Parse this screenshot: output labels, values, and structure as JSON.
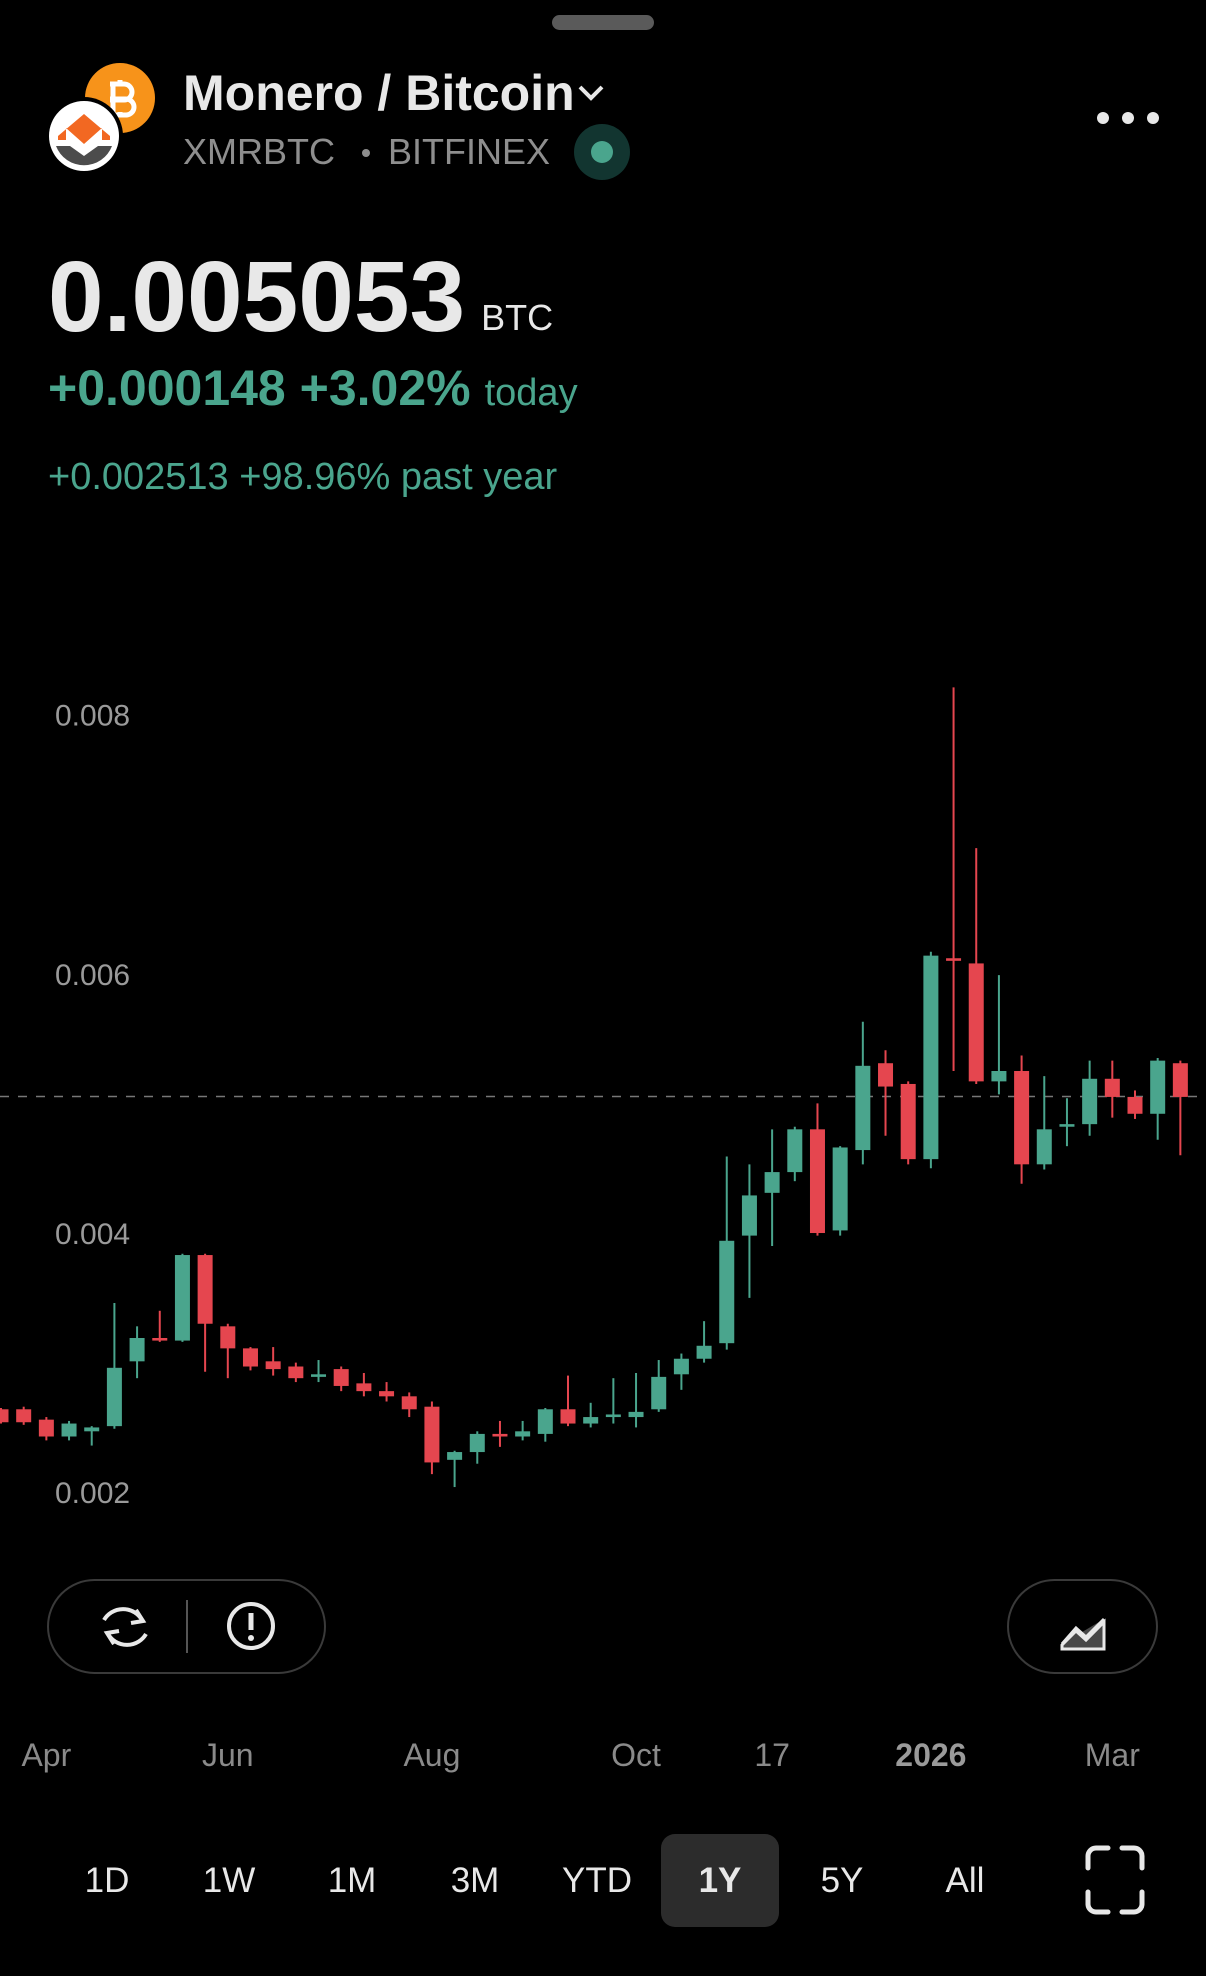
{
  "header": {
    "title": "Monero / Bitcoin",
    "symbol": "XMRBTC",
    "exchange": "BITFINEX",
    "price": 0.005053,
    "unit": "BTC",
    "change_today": "+0.000148 +3.02%",
    "today_label": "today",
    "change_year": "+0.002513 +98.96% past year"
  },
  "ranges": [
    "1D",
    "1W",
    "1M",
    "3M",
    "YTD",
    "1Y",
    "5Y",
    "All"
  ],
  "selected_range": "1Y",
  "chart_data": {
    "type": "candlestick",
    "up_color": "#4aa58d",
    "down_color": "#e5464f",
    "categories": [
      null,
      null,
      "Apr",
      null,
      null,
      null,
      null,
      null,
      null,
      null,
      "Jun",
      null,
      null,
      null,
      null,
      null,
      null,
      null,
      null,
      "Aug",
      null,
      null,
      null,
      null,
      null,
      null,
      null,
      null,
      "Oct",
      null,
      null,
      null,
      null,
      null,
      "17",
      null,
      null,
      null,
      null,
      null,
      null,
      "2026",
      null,
      null,
      null,
      null,
      null,
      null,
      null,
      "Mar",
      null,
      null,
      null
    ],
    "open": [
      0.00264,
      0.00264,
      0.00256,
      0.00243,
      0.00247,
      0.00251,
      0.00301,
      0.00319,
      0.00317,
      0.00383,
      0.00328,
      0.00311,
      0.00301,
      0.00297,
      0.00289,
      0.00295,
      0.00284,
      0.00278,
      0.00274,
      0.00266,
      0.00225,
      0.00231,
      0.00245,
      0.00243,
      0.00245,
      0.00264,
      0.00253,
      0.00258,
      0.00258,
      0.00264,
      0.00291,
      0.00303,
      0.00315,
      0.00398,
      0.00431,
      0.00447,
      0.0048,
      0.00402,
      0.00464,
      0.00531,
      0.00515,
      0.00457,
      0.00612,
      0.00608,
      0.00517,
      0.00525,
      0.00453,
      0.00482,
      0.00484,
      0.00519,
      0.00505,
      0.00492,
      0.00531
    ],
    "high": [
      0.00265,
      0.00266,
      0.00258,
      0.00255,
      0.00251,
      0.00346,
      0.00328,
      0.0034,
      0.00384,
      0.00384,
      0.0033,
      0.00312,
      0.00312,
      0.003,
      0.00302,
      0.00297,
      0.00292,
      0.00285,
      0.00277,
      0.0027,
      0.00232,
      0.00247,
      0.00255,
      0.00255,
      0.00265,
      0.0029,
      0.00269,
      0.00288,
      0.00292,
      0.00302,
      0.00307,
      0.00332,
      0.00459,
      0.00453,
      0.0048,
      0.00482,
      0.005,
      0.00467,
      0.00563,
      0.00541,
      0.00517,
      0.00617,
      0.00821,
      0.00697,
      0.00599,
      0.00537,
      0.00521,
      0.00504,
      0.00533,
      0.00533,
      0.0051,
      0.00535,
      0.00533
    ],
    "low": [
      0.00253,
      0.00252,
      0.0024,
      0.0024,
      0.00236,
      0.00249,
      0.00288,
      0.00316,
      0.00316,
      0.00293,
      0.00288,
      0.00294,
      0.0029,
      0.00285,
      0.00285,
      0.00278,
      0.00274,
      0.0027,
      0.00258,
      0.00214,
      0.00204,
      0.00222,
      0.00235,
      0.0024,
      0.00239,
      0.00251,
      0.0025,
      0.00253,
      0.0025,
      0.00262,
      0.00279,
      0.003,
      0.0031,
      0.0035,
      0.0039,
      0.0044,
      0.00398,
      0.00398,
      0.00453,
      0.00475,
      0.00453,
      0.0045,
      0.00525,
      0.00515,
      0.00507,
      0.00438,
      0.00449,
      0.00467,
      0.00475,
      0.00489,
      0.00488,
      0.00472,
      0.0046
    ],
    "close": [
      0.00254,
      0.00254,
      0.00243,
      0.00253,
      0.0025,
      0.00296,
      0.00319,
      0.00317,
      0.00383,
      0.0033,
      0.00311,
      0.00297,
      0.00295,
      0.00288,
      0.00291,
      0.00282,
      0.00278,
      0.00274,
      0.00264,
      0.00223,
      0.00231,
      0.00245,
      0.00243,
      0.00247,
      0.00264,
      0.00253,
      0.00258,
      0.0026,
      0.00262,
      0.00289,
      0.00303,
      0.00313,
      0.00394,
      0.00429,
      0.00447,
      0.0048,
      0.004,
      0.00466,
      0.00529,
      0.00513,
      0.00457,
      0.00614,
      0.0061,
      0.00517,
      0.00525,
      0.00453,
      0.0048,
      0.00484,
      0.00519,
      0.00505,
      0.00492,
      0.00533,
      0.00505
    ],
    "ylim": [
      0.0014,
      0.0091
    ],
    "yticks": [
      0.002,
      0.004,
      0.006,
      0.008
    ]
  }
}
